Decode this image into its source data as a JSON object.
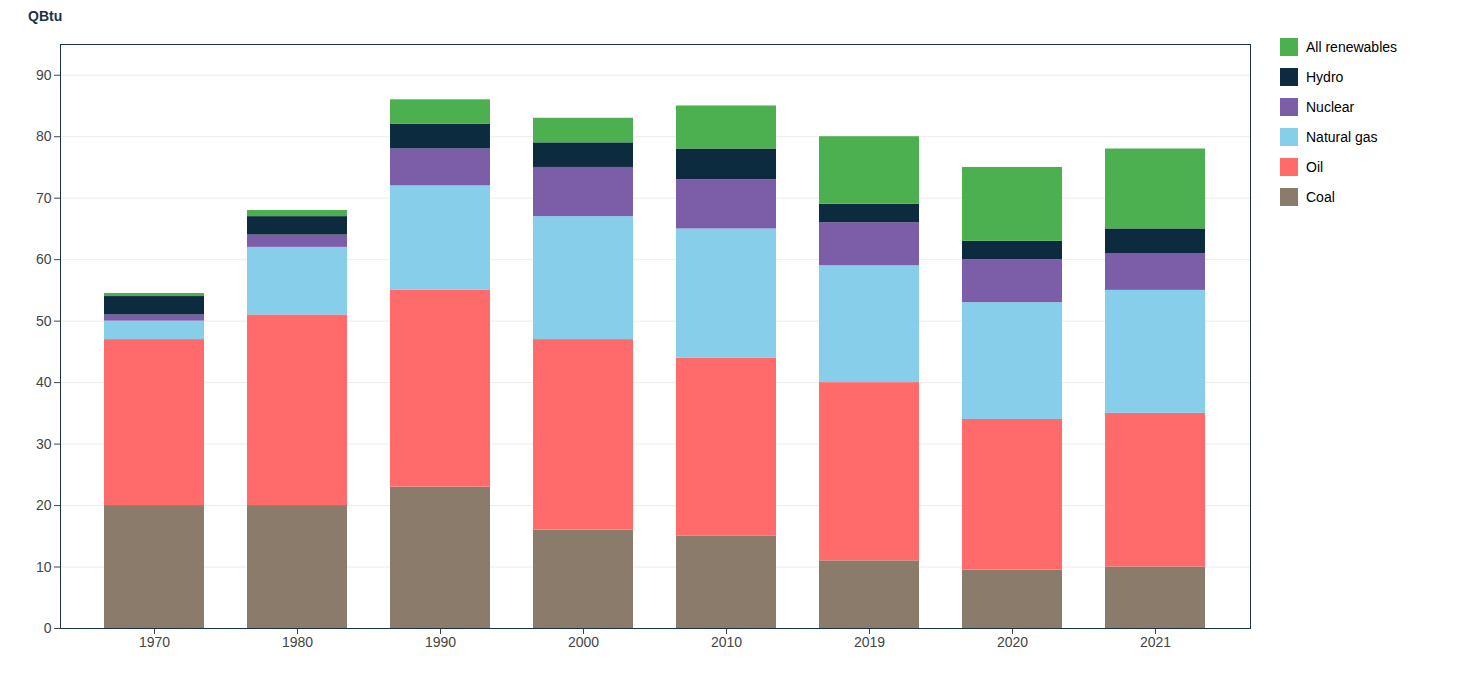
{
  "chart_data": {
    "type": "bar",
    "stacked": true,
    "categories": [
      "1970",
      "1980",
      "1990",
      "2000",
      "2010",
      "2019",
      "2020",
      "2021"
    ],
    "series": [
      {
        "name": "Coal",
        "color": "#8B7B6B",
        "values": [
          20,
          20,
          23,
          16,
          15,
          11,
          9.5,
          10
        ]
      },
      {
        "name": "Oil",
        "color": "#FF6B6B",
        "values": [
          27,
          31,
          32,
          31,
          29,
          29,
          24.5,
          25
        ]
      },
      {
        "name": "Natural gas",
        "color": "#87CEEB",
        "values": [
          3,
          11,
          17,
          20,
          21,
          19,
          19,
          20
        ]
      },
      {
        "name": "Nuclear",
        "color": "#7B5EA7",
        "values": [
          1,
          2,
          6,
          8,
          8,
          7,
          7,
          6
        ]
      },
      {
        "name": "Hydro",
        "color": "#0D2B3E",
        "values": [
          3,
          3,
          4,
          4,
          5,
          3,
          3,
          4
        ]
      },
      {
        "name": "All renewables",
        "color": "#4CAF50",
        "values": [
          0.5,
          1,
          4,
          4,
          7,
          11,
          12,
          13
        ]
      }
    ],
    "ylabel": "QBtu",
    "ylim": [
      0,
      95
    ],
    "yticks": [
      0,
      10,
      20,
      30,
      40,
      50,
      60,
      70,
      80,
      90
    ],
    "grid": true,
    "legend": "right"
  }
}
